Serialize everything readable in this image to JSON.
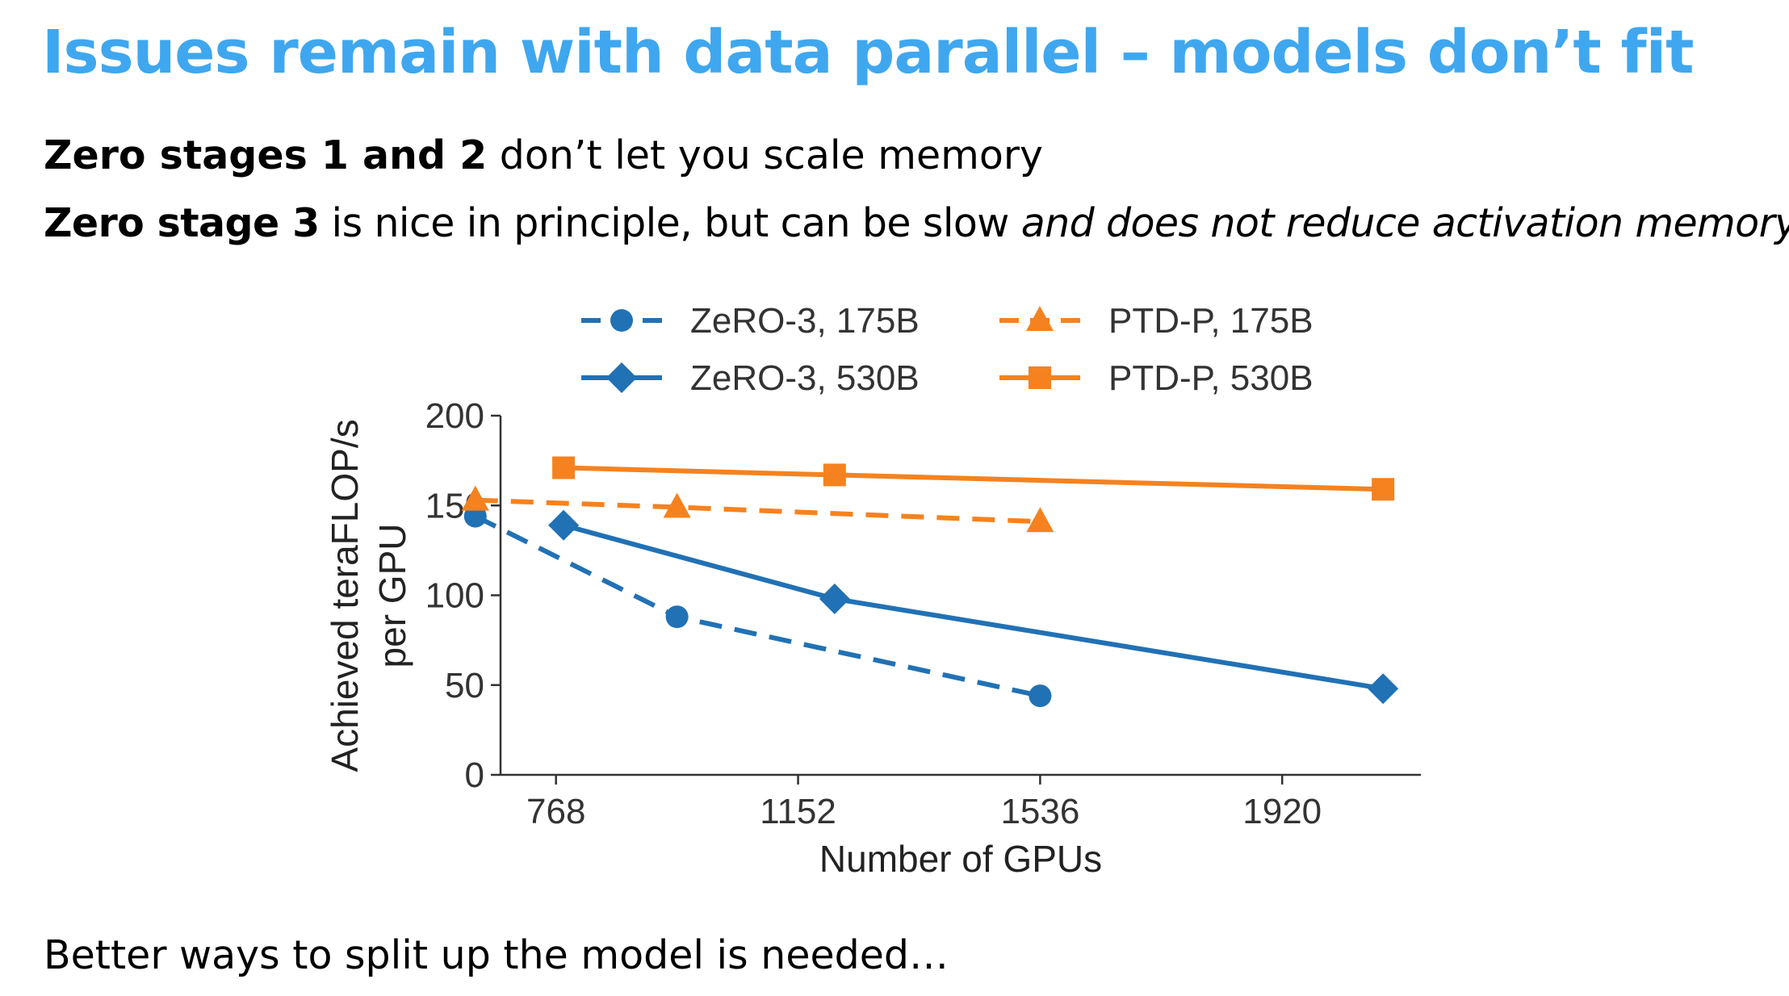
{
  "slide": {
    "title": "Issues remain with data parallel – models don’t fit",
    "line1_bold": "Zero stages 1 and 2",
    "line1_rest": " don’t let you scale memory",
    "line2_bold": "Zero stage 3",
    "line2_rest": " is nice in principle, but can be slow ",
    "line2_italic": "and does not reduce activation memory",
    "footer": "Better ways to split up the model is needed…"
  },
  "colors": {
    "title": "#3fa7ef",
    "blue": "#2171b5",
    "orange": "#f5821f"
  },
  "chart_data": {
    "type": "line",
    "xlabel": "Number of GPUs",
    "ylabel_lines": [
      "Achieved teraFLOP/s",
      "per GPU"
    ],
    "xticks": [
      768,
      1152,
      1536,
      1920
    ],
    "xlim": [
      680,
      2140
    ],
    "yticks": [
      0,
      50,
      100,
      150,
      200
    ],
    "ylim": [
      0,
      200
    ],
    "grid": false,
    "legend_position": "top",
    "series": [
      {
        "name": "ZeRO-3, 175B",
        "color": "#2171b5",
        "dash": true,
        "marker": "circle",
        "x": [
          640,
          960,
          1536
        ],
        "y": [
          144,
          88,
          44
        ]
      },
      {
        "name": "ZeRO-3, 530B",
        "color": "#2171b5",
        "dash": false,
        "marker": "diamond",
        "x": [
          780,
          1210,
          2080
        ],
        "y": [
          139,
          98,
          48
        ]
      },
      {
        "name": "PTD-P, 175B",
        "color": "#f5821f",
        "dash": true,
        "marker": "triangle",
        "x": [
          640,
          960,
          1536
        ],
        "y": [
          153,
          149,
          141
        ]
      },
      {
        "name": "PTD-P, 530B",
        "color": "#f5821f",
        "dash": false,
        "marker": "square",
        "x": [
          780,
          1210,
          2080
        ],
        "y": [
          171,
          167,
          159
        ]
      }
    ]
  }
}
